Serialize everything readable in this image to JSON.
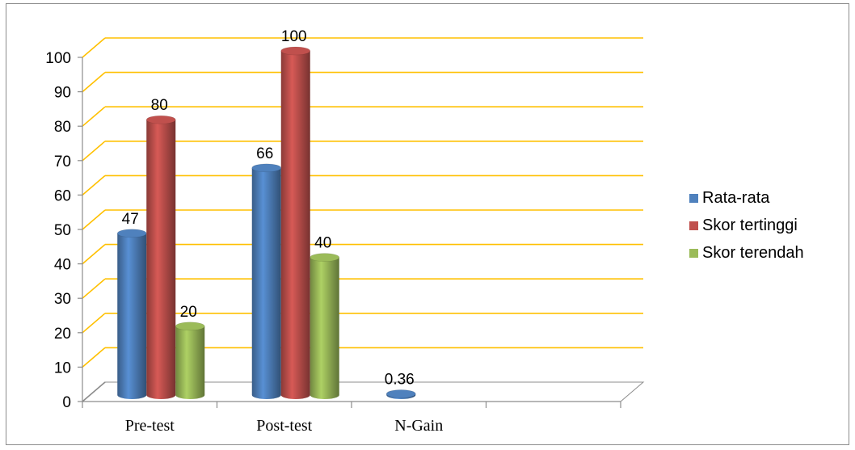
{
  "chart_data": {
    "type": "bar",
    "style": "3d-cylinder",
    "categories": [
      "Pre-test",
      "Post-test",
      "N-Gain"
    ],
    "series": [
      {
        "name": "Rata-rata",
        "color": "#4f81bd",
        "values": [
          47,
          66,
          0.36
        ]
      },
      {
        "name": "Skor tertinggi",
        "color": "#c0504d",
        "values": [
          80,
          100,
          null
        ]
      },
      {
        "name": "Skor terendah",
        "color": "#9bbb59",
        "values": [
          20,
          40,
          null
        ]
      }
    ],
    "data_labels": [
      [
        "47",
        "66",
        "0.36"
      ],
      [
        "80",
        "100",
        ""
      ],
      [
        "20",
        "40",
        ""
      ]
    ],
    "yticks": [
      "0",
      "10",
      "20",
      "30",
      "40",
      "50",
      "60",
      "70",
      "80",
      "90",
      "100"
    ],
    "ylim": [
      0,
      100
    ],
    "grid": true,
    "grid_color": "#ffc000",
    "legend_position": "right",
    "title": "",
    "xlabel": "",
    "ylabel": ""
  }
}
